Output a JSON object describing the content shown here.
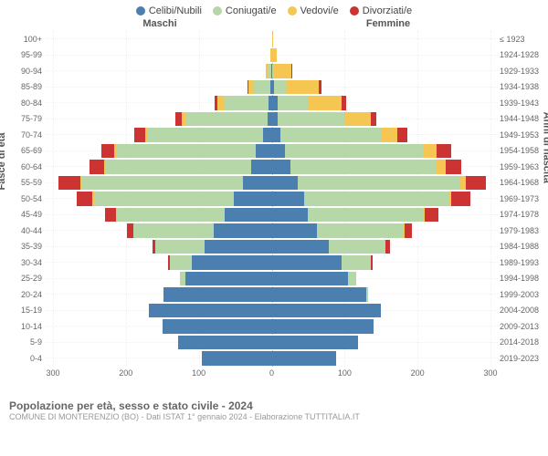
{
  "legend": [
    {
      "label": "Celibi/Nubili",
      "color": "#4a7fb0"
    },
    {
      "label": "Coniugati/e",
      "color": "#b6d7a8"
    },
    {
      "label": "Vedovi/e",
      "color": "#f6c653"
    },
    {
      "label": "Divorziati/e",
      "color": "#cc3333"
    }
  ],
  "col_left": "Maschi",
  "col_right": "Femmine",
  "axis_left": "Fasce di età",
  "axis_right": "Anni di nascita",
  "x_ticks_left": [
    300,
    200,
    100,
    0
  ],
  "x_ticks_right": [
    0,
    100,
    200,
    300
  ],
  "x_max": 310,
  "rows": [
    {
      "age": "100+",
      "birth": "≤ 1923",
      "m": [
        0,
        0,
        0,
        0
      ],
      "f": [
        0,
        0,
        2,
        0
      ]
    },
    {
      "age": "95-99",
      "birth": "1924-1928",
      "m": [
        0,
        0,
        2,
        0
      ],
      "f": [
        0,
        1,
        6,
        0
      ]
    },
    {
      "age": "90-94",
      "birth": "1929-1933",
      "m": [
        1,
        3,
        4,
        0
      ],
      "f": [
        1,
        2,
        24,
        1
      ]
    },
    {
      "age": "85-89",
      "birth": "1934-1938",
      "m": [
        2,
        22,
        8,
        1
      ],
      "f": [
        3,
        18,
        44,
        3
      ]
    },
    {
      "age": "80-84",
      "birth": "1939-1943",
      "m": [
        4,
        62,
        8,
        4
      ],
      "f": [
        8,
        42,
        46,
        6
      ]
    },
    {
      "age": "75-79",
      "birth": "1944-1948",
      "m": [
        6,
        112,
        6,
        8
      ],
      "f": [
        8,
        92,
        36,
        8
      ]
    },
    {
      "age": "70-74",
      "birth": "1949-1953",
      "m": [
        12,
        158,
        4,
        14
      ],
      "f": [
        12,
        138,
        22,
        14
      ]
    },
    {
      "age": "65-69",
      "birth": "1954-1958",
      "m": [
        22,
        192,
        2,
        18
      ],
      "f": [
        18,
        190,
        18,
        20
      ]
    },
    {
      "age": "60-64",
      "birth": "1959-1963",
      "m": [
        28,
        200,
        2,
        20
      ],
      "f": [
        26,
        200,
        12,
        22
      ]
    },
    {
      "age": "55-59",
      "birth": "1964-1968",
      "m": [
        40,
        220,
        2,
        30
      ],
      "f": [
        36,
        222,
        8,
        28
      ]
    },
    {
      "age": "50-54",
      "birth": "1969-1973",
      "m": [
        52,
        192,
        2,
        22
      ],
      "f": [
        44,
        198,
        4,
        26
      ]
    },
    {
      "age": "45-49",
      "birth": "1974-1978",
      "m": [
        64,
        150,
        0,
        14
      ],
      "f": [
        50,
        158,
        2,
        18
      ]
    },
    {
      "age": "40-44",
      "birth": "1979-1983",
      "m": [
        80,
        110,
        0,
        8
      ],
      "f": [
        62,
        118,
        2,
        10
      ]
    },
    {
      "age": "35-39",
      "birth": "1984-1988",
      "m": [
        92,
        68,
        0,
        4
      ],
      "f": [
        78,
        78,
        0,
        6
      ]
    },
    {
      "age": "30-34",
      "birth": "1989-1993",
      "m": [
        110,
        30,
        0,
        2
      ],
      "f": [
        96,
        40,
        0,
        2
      ]
    },
    {
      "age": "25-29",
      "birth": "1994-1998",
      "m": [
        118,
        8,
        0,
        0
      ],
      "f": [
        104,
        12,
        0,
        0
      ]
    },
    {
      "age": "20-24",
      "birth": "1999-2003",
      "m": [
        148,
        0,
        0,
        0
      ],
      "f": [
        130,
        2,
        0,
        0
      ]
    },
    {
      "age": "15-19",
      "birth": "2004-2008",
      "m": [
        168,
        0,
        0,
        0
      ],
      "f": [
        150,
        0,
        0,
        0
      ]
    },
    {
      "age": "10-14",
      "birth": "2009-2013",
      "m": [
        150,
        0,
        0,
        0
      ],
      "f": [
        140,
        0,
        0,
        0
      ]
    },
    {
      "age": "5-9",
      "birth": "2014-2018",
      "m": [
        128,
        0,
        0,
        0
      ],
      "f": [
        118,
        0,
        0,
        0
      ]
    },
    {
      "age": "0-4",
      "birth": "2019-2023",
      "m": [
        96,
        0,
        0,
        0
      ],
      "f": [
        88,
        0,
        0,
        0
      ]
    }
  ],
  "footer_title": "Popolazione per età, sesso e stato civile - 2024",
  "footer_sub": "COMUNE DI MONTERENZIO (BO) - Dati ISTAT 1° gennaio 2024 - Elaborazione TUTTITALIA.IT"
}
